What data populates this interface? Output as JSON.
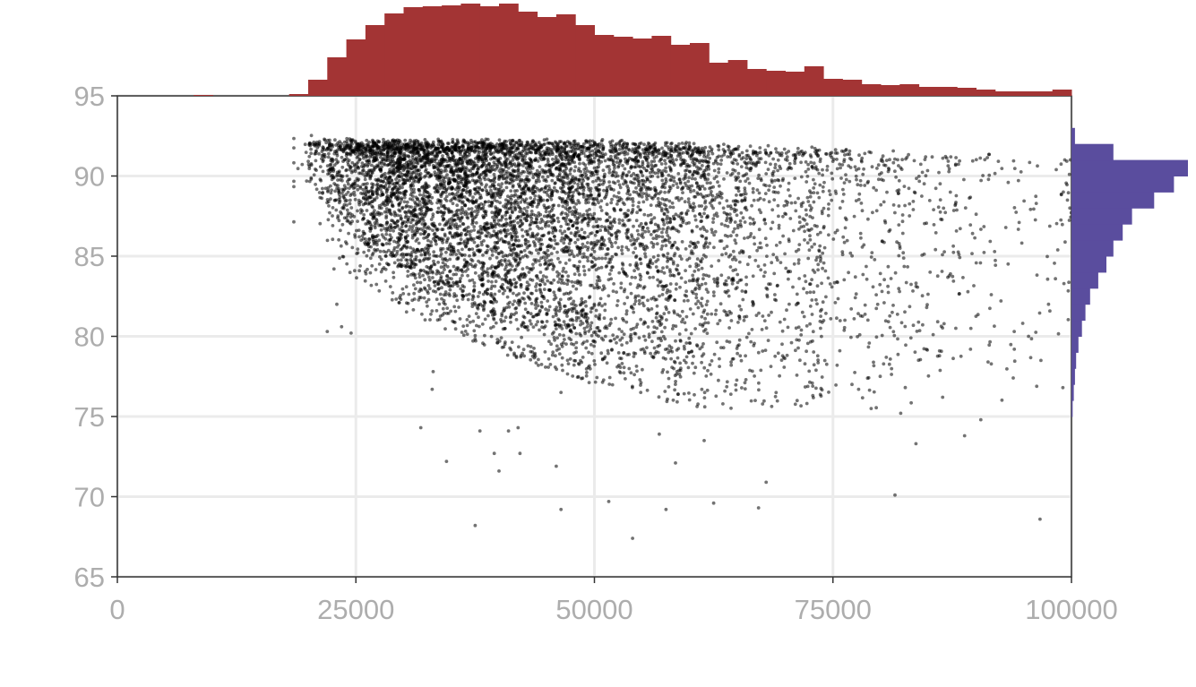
{
  "chart_data": {
    "type": "scatter",
    "title": "",
    "xlabel": "",
    "ylabel": "",
    "xlim": [
      0,
      100000
    ],
    "ylim": [
      65,
      95
    ],
    "x_ticks": [
      0,
      25000,
      50000,
      75000,
      100000
    ],
    "x_tick_labels": [
      "0",
      "25000",
      "50000",
      "75000",
      "100000"
    ],
    "y_ticks": [
      65,
      70,
      75,
      80,
      85,
      90,
      95
    ],
    "y_tick_labels": [
      "65",
      "70",
      "75",
      "80",
      "85",
      "90",
      "95"
    ],
    "grid": true,
    "point_color": "#000000",
    "point_alpha": 0.55,
    "top_histogram": {
      "variable": "x",
      "color": "#a33434",
      "bin_width": 2000,
      "bins_start": [
        8000,
        10000,
        12000,
        14000,
        16000,
        18000,
        20000,
        22000,
        24000,
        26000,
        28000,
        30000,
        32000,
        34000,
        36000,
        38000,
        40000,
        42000,
        44000,
        46000,
        48000,
        50000,
        52000,
        54000,
        56000,
        58000,
        60000,
        62000,
        64000,
        66000,
        68000,
        70000,
        72000,
        74000,
        76000,
        78000,
        80000,
        82000,
        84000,
        86000,
        88000,
        90000,
        92000,
        94000,
        96000,
        98000
      ],
      "relative_heights": [
        0.01,
        0.0,
        0.0,
        0.0,
        0.0,
        0.02,
        0.18,
        0.43,
        0.63,
        0.79,
        0.92,
        0.99,
        1.0,
        1.01,
        1.03,
        1.0,
        1.03,
        0.94,
        0.88,
        0.91,
        0.79,
        0.68,
        0.66,
        0.64,
        0.67,
        0.57,
        0.59,
        0.37,
        0.4,
        0.3,
        0.28,
        0.27,
        0.33,
        0.19,
        0.18,
        0.13,
        0.12,
        0.13,
        0.1,
        0.1,
        0.09,
        0.07,
        0.05,
        0.05,
        0.05,
        0.07
      ]
    },
    "right_histogram": {
      "variable": "y",
      "color": "#5a4d9e",
      "bin_width": 1,
      "bins_start": [
        74,
        75,
        76,
        77,
        78,
        79,
        80,
        81,
        82,
        83,
        84,
        85,
        86,
        87,
        88,
        89,
        90,
        91,
        92
      ],
      "relative_widths": [
        0.0,
        0.01,
        0.02,
        0.03,
        0.04,
        0.06,
        0.09,
        0.12,
        0.16,
        0.23,
        0.3,
        0.36,
        0.44,
        0.52,
        0.71,
        0.88,
        1.0,
        0.36,
        0.03
      ]
    },
    "scatter_distribution": {
      "n_points": 7500,
      "x_min": 18500,
      "y_upper_boundary": [
        [
          19000,
          92.3
        ],
        [
          25000,
          92.0
        ],
        [
          35000,
          92.0
        ],
        [
          50000,
          92.0
        ],
        [
          60000,
          91.8
        ],
        [
          75000,
          91.5
        ],
        [
          100000,
          91.0
        ]
      ],
      "y_core_lower_boundary": [
        [
          20000,
          89.5
        ],
        [
          25000,
          86.0
        ],
        [
          30000,
          84.0
        ],
        [
          40000,
          81.5
        ],
        [
          50000,
          79.5
        ],
        [
          60000,
          78.0
        ],
        [
          75000,
          78.0
        ],
        [
          100000,
          78.0
        ]
      ],
      "outliers": [
        [
          37500,
          68.2
        ],
        [
          54000,
          67.4
        ],
        [
          46500,
          69.2
        ],
        [
          57500,
          69.2
        ],
        [
          51500,
          69.7
        ],
        [
          62500,
          69.6
        ],
        [
          67200,
          69.3
        ],
        [
          81500,
          70.1
        ],
        [
          96700,
          68.6
        ],
        [
          34500,
          72.2
        ],
        [
          40000,
          71.6
        ],
        [
          39500,
          72.7
        ],
        [
          42200,
          72.7
        ],
        [
          46000,
          71.9
        ],
        [
          58500,
          72.1
        ],
        [
          68000,
          70.9
        ],
        [
          31800,
          74.3
        ],
        [
          38000,
          74.1
        ],
        [
          41000,
          74.1
        ],
        [
          42000,
          74.3
        ],
        [
          56800,
          73.9
        ],
        [
          61500,
          73.5
        ],
        [
          83700,
          73.3
        ],
        [
          88800,
          73.8
        ],
        [
          90500,
          74.8
        ],
        [
          33000,
          76.7
        ],
        [
          33100,
          77.8
        ],
        [
          46500,
          76.5
        ],
        [
          22000,
          80.3
        ],
        [
          23500,
          80.6
        ],
        [
          24500,
          80.2
        ],
        [
          23000,
          82.0
        ],
        [
          22700,
          84.2
        ],
        [
          93900,
          77.4
        ],
        [
          96800,
          78.5
        ],
        [
          99100,
          76.8
        ],
        [
          95500,
          80.0
        ],
        [
          94000,
          80.3
        ],
        [
          97600,
          82.0
        ],
        [
          82100,
          75.2
        ],
        [
          86500,
          76.2
        ],
        [
          79000,
          75.5
        ]
      ]
    }
  }
}
